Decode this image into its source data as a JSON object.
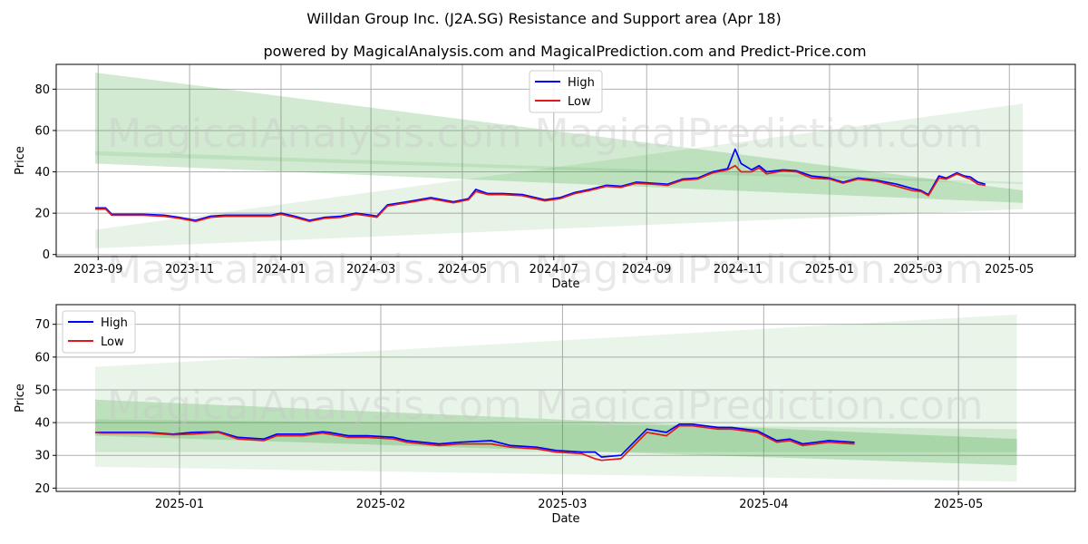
{
  "title": "Willdan Group Inc. (J2A.SG) Resistance and Support area (Apr 18)",
  "subtitle": "powered by MagicalAnalysis.com and MagicalPrediction.com and Predict-Price.com",
  "watermarks": [
    "MagicalAnalysis.com",
    "MagicalPrediction.com"
  ],
  "colors": {
    "high": "#0000ff",
    "low": "#e0191c",
    "band": "#2e9e2e",
    "grid": "#b0b0b0"
  },
  "chart_data": [
    {
      "type": "line",
      "xlabel": "Date",
      "ylabel": "Price",
      "x_ticks": [
        "2023-09",
        "2023-11",
        "2024-01",
        "2024-03",
        "2024-05",
        "2024-07",
        "2024-09",
        "2024-11",
        "2025-01",
        "2025-03",
        "2025-05"
      ],
      "y_ticks": [
        0,
        20,
        40,
        60,
        80
      ],
      "xlim": [
        "2023-08-04",
        "2025-06-14"
      ],
      "ylim": [
        -1,
        92
      ],
      "grid": true,
      "legend": "top-center",
      "bands": [
        {
          "x": [
            "2023-08-30",
            "2025-05-10"
          ],
          "upper": [
            88,
            31
          ],
          "lower": [
            44,
            25
          ],
          "opacity": 0.22
        },
        {
          "x": [
            "2023-08-30",
            "2025-05-10"
          ],
          "upper": [
            12,
            73
          ],
          "lower": [
            3,
            22
          ],
          "opacity": 0.12
        },
        {
          "x": [
            "2023-08-30",
            "2025-05-10"
          ],
          "upper": [
            50,
            35
          ],
          "lower": [
            48,
            34
          ],
          "opacity": 0.12
        }
      ],
      "series": [
        {
          "name": "High",
          "x": [
            "2023-08-30",
            "2023-09-06",
            "2023-09-10",
            "2023-09-20",
            "2023-10-01",
            "2023-10-15",
            "2023-10-25",
            "2023-11-05",
            "2023-11-15",
            "2023-11-25",
            "2023-12-10",
            "2023-12-25",
            "2024-01-01",
            "2024-01-10",
            "2024-01-20",
            "2024-01-30",
            "2024-02-10",
            "2024-02-20",
            "2024-03-01",
            "2024-03-05",
            "2024-03-12",
            "2024-03-25",
            "2024-04-10",
            "2024-04-25",
            "2024-05-05",
            "2024-05-10",
            "2024-05-18",
            "2024-05-28",
            "2024-06-10",
            "2024-06-25",
            "2024-07-05",
            "2024-07-15",
            "2024-07-25",
            "2024-08-05",
            "2024-08-15",
            "2024-08-25",
            "2024-09-05",
            "2024-09-15",
            "2024-09-25",
            "2024-10-05",
            "2024-10-15",
            "2024-10-25",
            "2024-10-30",
            "2024-11-03",
            "2024-11-10",
            "2024-11-15",
            "2024-11-20",
            "2024-12-01",
            "2024-12-10",
            "2024-12-20",
            "2025-01-01",
            "2025-01-10",
            "2025-01-20",
            "2025-02-01",
            "2025-02-15",
            "2025-02-25",
            "2025-03-03",
            "2025-03-08",
            "2025-03-15",
            "2025-03-20",
            "2025-03-27",
            "2025-04-01",
            "2025-04-05",
            "2025-04-10",
            "2025-04-15"
          ],
          "y": [
            22.5,
            22.5,
            19.5,
            19.5,
            19.5,
            19.0,
            18.0,
            16.5,
            18.5,
            19.0,
            19.0,
            19.0,
            20.0,
            18.5,
            16.5,
            18.0,
            18.5,
            20.0,
            19.0,
            18.5,
            24.0,
            25.5,
            27.5,
            25.5,
            27.0,
            31.5,
            29.5,
            29.5,
            29.0,
            26.5,
            27.5,
            30.0,
            31.5,
            33.5,
            33.0,
            35.0,
            34.5,
            34.0,
            36.5,
            37.0,
            40.0,
            41.5,
            51.0,
            44.0,
            41.0,
            43.0,
            40.0,
            41.0,
            40.5,
            38.0,
            37.0,
            35.0,
            37.0,
            36.0,
            34.0,
            32.0,
            31.0,
            29.0,
            38.0,
            37.0,
            39.5,
            38.0,
            37.5,
            35.0,
            34.0
          ]
        },
        {
          "name": "Low",
          "x": [
            "2023-08-30",
            "2023-09-06",
            "2023-09-10",
            "2023-09-20",
            "2023-10-01",
            "2023-10-15",
            "2023-10-25",
            "2023-11-05",
            "2023-11-15",
            "2023-11-25",
            "2023-12-10",
            "2023-12-25",
            "2024-01-01",
            "2024-01-10",
            "2024-01-20",
            "2024-01-30",
            "2024-02-10",
            "2024-02-20",
            "2024-03-01",
            "2024-03-05",
            "2024-03-12",
            "2024-03-25",
            "2024-04-10",
            "2024-04-25",
            "2024-05-05",
            "2024-05-10",
            "2024-05-18",
            "2024-05-28",
            "2024-06-10",
            "2024-06-25",
            "2024-07-05",
            "2024-07-15",
            "2024-07-25",
            "2024-08-05",
            "2024-08-15",
            "2024-08-25",
            "2024-09-05",
            "2024-09-15",
            "2024-09-25",
            "2024-10-05",
            "2024-10-15",
            "2024-10-25",
            "2024-10-30",
            "2024-11-03",
            "2024-11-10",
            "2024-11-15",
            "2024-11-20",
            "2024-12-01",
            "2024-12-10",
            "2024-12-20",
            "2025-01-01",
            "2025-01-10",
            "2025-01-20",
            "2025-02-01",
            "2025-02-15",
            "2025-02-25",
            "2025-03-03",
            "2025-03-08",
            "2025-03-15",
            "2025-03-20",
            "2025-03-27",
            "2025-04-01",
            "2025-04-05",
            "2025-04-10",
            "2025-04-15"
          ],
          "y": [
            22.0,
            22.0,
            19.0,
            19.0,
            19.0,
            18.5,
            17.5,
            16.0,
            18.0,
            18.5,
            18.5,
            18.5,
            19.5,
            18.0,
            16.0,
            17.5,
            18.0,
            19.5,
            18.5,
            18.0,
            23.5,
            25.0,
            27.0,
            25.0,
            26.5,
            30.5,
            29.0,
            29.0,
            28.5,
            26.0,
            27.0,
            29.5,
            31.0,
            33.0,
            32.5,
            34.5,
            34.0,
            33.5,
            36.0,
            36.5,
            39.5,
            41.0,
            43.0,
            40.0,
            40.0,
            42.0,
            39.0,
            40.5,
            40.0,
            37.0,
            36.5,
            34.5,
            36.5,
            35.5,
            33.0,
            31.0,
            30.5,
            28.5,
            37.0,
            36.5,
            39.0,
            37.5,
            36.5,
            34.0,
            33.5
          ]
        }
      ]
    },
    {
      "type": "line",
      "xlabel": "Date",
      "ylabel": "Price",
      "x_ticks": [
        "2025-01",
        "2025-02",
        "2025-03",
        "2025-04",
        "2025-05"
      ],
      "y_ticks": [
        20,
        30,
        40,
        50,
        60,
        70
      ],
      "xlim": [
        "2024-12-13",
        "2025-05-19"
      ],
      "ylim": [
        19,
        76
      ],
      "grid": true,
      "legend": "top-left",
      "bands": [
        {
          "x": [
            "2024-12-19",
            "2025-05-10"
          ],
          "upper": [
            47,
            35
          ],
          "lower": [
            36,
            27
          ],
          "opacity": 0.24
        },
        {
          "x": [
            "2024-12-19",
            "2025-05-10"
          ],
          "upper": [
            41,
            38
          ],
          "lower": [
            31,
            31
          ],
          "opacity": 0.14
        },
        {
          "x": [
            "2024-12-19",
            "2025-05-10"
          ],
          "upper": [
            57,
            73
          ],
          "lower": [
            26.5,
            22
          ],
          "opacity": 0.1
        }
      ],
      "series": [
        {
          "name": "High",
          "x": [
            "2024-12-19",
            "2024-12-20",
            "2024-12-24",
            "2024-12-27",
            "2024-12-31",
            "2025-01-03",
            "2025-01-07",
            "2025-01-10",
            "2025-01-14",
            "2025-01-16",
            "2025-01-20",
            "2025-01-23",
            "2025-01-24",
            "2025-01-27",
            "2025-01-30",
            "2025-02-03",
            "2025-02-05",
            "2025-02-10",
            "2025-02-13",
            "2025-02-18",
            "2025-02-21",
            "2025-02-25",
            "2025-02-28",
            "2025-03-04",
            "2025-03-06",
            "2025-03-07",
            "2025-03-10",
            "2025-03-14",
            "2025-03-17",
            "2025-03-19",
            "2025-03-21",
            "2025-03-25",
            "2025-03-27",
            "2025-03-31",
            "2025-04-03",
            "2025-04-05",
            "2025-04-07",
            "2025-04-09",
            "2025-04-11",
            "2025-04-15"
          ],
          "y": [
            37.0,
            37.0,
            37.0,
            37.0,
            36.5,
            37.0,
            37.2,
            35.5,
            35.0,
            36.5,
            36.5,
            37.2,
            37.0,
            36.0,
            36.0,
            35.5,
            34.5,
            33.5,
            34.0,
            34.5,
            33.0,
            32.5,
            31.5,
            31.0,
            31.0,
            29.5,
            30.0,
            38.0,
            37.0,
            39.5,
            39.5,
            38.5,
            38.5,
            37.5,
            34.5,
            35.0,
            33.5,
            34.0,
            34.5,
            34.0
          ]
        },
        {
          "name": "Low",
          "x": [
            "2024-12-19",
            "2024-12-20",
            "2024-12-24",
            "2024-12-27",
            "2024-12-31",
            "2025-01-03",
            "2025-01-07",
            "2025-01-10",
            "2025-01-14",
            "2025-01-16",
            "2025-01-20",
            "2025-01-23",
            "2025-01-24",
            "2025-01-27",
            "2025-01-30",
            "2025-02-03",
            "2025-02-05",
            "2025-02-10",
            "2025-02-13",
            "2025-02-18",
            "2025-02-21",
            "2025-02-25",
            "2025-02-28",
            "2025-03-04",
            "2025-03-06",
            "2025-03-07",
            "2025-03-10",
            "2025-03-14",
            "2025-03-17",
            "2025-03-19",
            "2025-03-21",
            "2025-03-25",
            "2025-03-27",
            "2025-03-31",
            "2025-04-03",
            "2025-04-05",
            "2025-04-07",
            "2025-04-09",
            "2025-04-11",
            "2025-04-15"
          ],
          "y": [
            37.0,
            36.8,
            36.8,
            36.8,
            36.3,
            36.5,
            37.0,
            35.0,
            34.5,
            36.0,
            36.0,
            36.8,
            36.5,
            35.5,
            35.5,
            35.0,
            34.0,
            33.0,
            33.5,
            33.5,
            32.5,
            32.0,
            31.0,
            30.5,
            29.0,
            28.5,
            29.0,
            37.0,
            36.0,
            39.0,
            39.0,
            38.0,
            38.0,
            37.0,
            34.0,
            34.5,
            33.0,
            33.5,
            34.0,
            33.5
          ]
        }
      ]
    }
  ]
}
